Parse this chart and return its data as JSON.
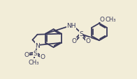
{
  "bg_color": "#f2edd8",
  "line_color": "#3a3a5c",
  "lw": 1.3,
  "fs": 6.5,
  "fig_w": 1.96,
  "fig_h": 1.15,
  "dpi": 100,
  "xlim": [
    0,
    196
  ],
  "ylim": [
    0,
    115
  ]
}
